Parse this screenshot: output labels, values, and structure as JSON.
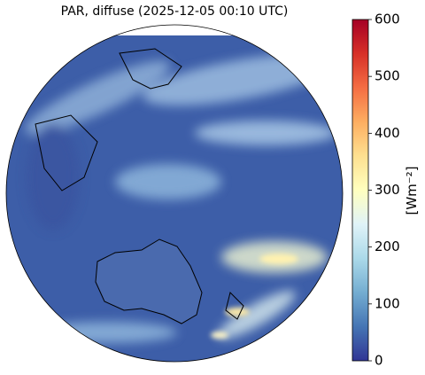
{
  "map": {
    "title": "PAR, diffuse (2025-12-05 00:10 UTC)",
    "colorbar": {
      "label": "[Wm⁻²]",
      "lim": [
        0,
        600
      ],
      "ticks": [
        0,
        100,
        200,
        300,
        400,
        500,
        600
      ],
      "colors": [
        "#313695",
        "#4575b4",
        "#74add1",
        "#abd9e9",
        "#e0f3f8",
        "#ffffbf",
        "#fee090",
        "#fdae61",
        "#f46d43",
        "#d73027",
        "#a50026"
      ]
    }
  }
}
